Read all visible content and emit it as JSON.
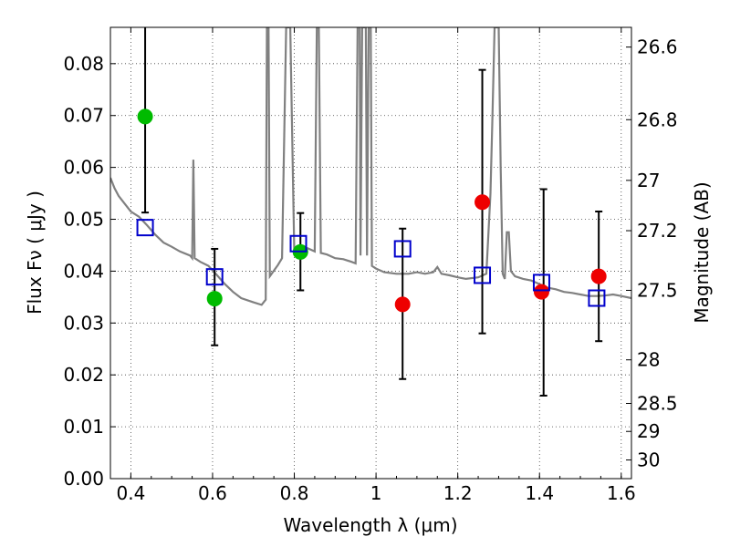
{
  "chart_data": {
    "type": "scatter",
    "xlabel": "Wavelength  λ (μm)",
    "ylabel": "Flux  Fν  ( μJy )",
    "ylabel_right": "Magnitude (AB)",
    "xlim": [
      0.35,
      1.625
    ],
    "ylim": [
      0.0,
      0.087
    ],
    "grid": true,
    "x_ticks": [
      0.4,
      0.6,
      0.8,
      1.0,
      1.2,
      1.4,
      1.6
    ],
    "x_tick_labels": [
      "0.4",
      "0.6",
      "0.8",
      "1",
      "1.2",
      "1.4",
      "1.6"
    ],
    "y_ticks": [
      0.0,
      0.01,
      0.02,
      0.03,
      0.04,
      0.05,
      0.06,
      0.07,
      0.08
    ],
    "y_tick_labels": [
      "0.00",
      "0.01",
      "0.02",
      "0.03",
      "0.04",
      "0.05",
      "0.06",
      "0.07",
      "0.08"
    ],
    "mag_ticks": [
      {
        "label": "26.6",
        "flux": 0.0832
      },
      {
        "label": "26.8",
        "flux": 0.0692
      },
      {
        "label": "27",
        "flux": 0.0575
      },
      {
        "label": "27.2",
        "flux": 0.0478
      },
      {
        "label": "27.5",
        "flux": 0.0363
      },
      {
        "label": "28",
        "flux": 0.0229
      },
      {
        "label": "28.5",
        "flux": 0.0145
      },
      {
        "label": "29",
        "flux": 0.0091
      },
      {
        "label": "30",
        "flux": 0.0036
      }
    ],
    "series": [
      {
        "kind": "line",
        "color": "#808080",
        "points": [
          [
            0.35,
            0.058
          ],
          [
            0.36,
            0.056
          ],
          [
            0.37,
            0.0545
          ],
          [
            0.38,
            0.0535
          ],
          [
            0.39,
            0.0525
          ],
          [
            0.4,
            0.0515
          ],
          [
            0.42,
            0.0505
          ],
          [
            0.44,
            0.0488
          ],
          [
            0.46,
            0.047
          ],
          [
            0.48,
            0.0455
          ],
          [
            0.5,
            0.0447
          ],
          [
            0.52,
            0.0438
          ],
          [
            0.545,
            0.043
          ],
          [
            0.55,
            0.0425
          ],
          [
            0.553,
            0.0615
          ],
          [
            0.556,
            0.0425
          ],
          [
            0.57,
            0.0418
          ],
          [
            0.59,
            0.041
          ],
          [
            0.61,
            0.0393
          ],
          [
            0.63,
            0.0375
          ],
          [
            0.65,
            0.036
          ],
          [
            0.67,
            0.0348
          ],
          [
            0.7,
            0.034
          ],
          [
            0.72,
            0.0335
          ],
          [
            0.73,
            0.0345
          ],
          [
            0.733,
            0.087
          ],
          [
            0.737,
            0.087
          ],
          [
            0.74,
            0.039
          ],
          [
            0.76,
            0.0412
          ],
          [
            0.77,
            0.0425
          ],
          [
            0.78,
            0.087
          ],
          [
            0.79,
            0.087
          ],
          [
            0.8,
            0.0435
          ],
          [
            0.81,
            0.044
          ],
          [
            0.83,
            0.0445
          ],
          [
            0.85,
            0.0438
          ],
          [
            0.855,
            0.087
          ],
          [
            0.86,
            0.087
          ],
          [
            0.865,
            0.0435
          ],
          [
            0.88,
            0.0432
          ],
          [
            0.9,
            0.0425
          ],
          [
            0.92,
            0.0423
          ],
          [
            0.94,
            0.0418
          ],
          [
            0.95,
            0.0415
          ],
          [
            0.955,
            0.087
          ],
          [
            0.96,
            0.087
          ],
          [
            0.962,
            0.043
          ],
          [
            0.966,
            0.087
          ],
          [
            0.975,
            0.087
          ],
          [
            0.978,
            0.043
          ],
          [
            0.982,
            0.087
          ],
          [
            0.987,
            0.087
          ],
          [
            0.99,
            0.041
          ],
          [
            1.0,
            0.0405
          ],
          [
            1.02,
            0.0398
          ],
          [
            1.05,
            0.0395
          ],
          [
            1.08,
            0.0395
          ],
          [
            1.1,
            0.0398
          ],
          [
            1.12,
            0.0395
          ],
          [
            1.14,
            0.0398
          ],
          [
            1.15,
            0.0408
          ],
          [
            1.16,
            0.0395
          ],
          [
            1.18,
            0.0392
          ],
          [
            1.2,
            0.0388
          ],
          [
            1.22,
            0.0385
          ],
          [
            1.25,
            0.0388
          ],
          [
            1.27,
            0.0395
          ],
          [
            1.28,
            0.055
          ],
          [
            1.285,
            0.07
          ],
          [
            1.29,
            0.087
          ],
          [
            1.3,
            0.087
          ],
          [
            1.305,
            0.06
          ],
          [
            1.31,
            0.0395
          ],
          [
            1.315,
            0.0385
          ],
          [
            1.32,
            0.0475
          ],
          [
            1.325,
            0.0475
          ],
          [
            1.33,
            0.04
          ],
          [
            1.34,
            0.039
          ],
          [
            1.36,
            0.0385
          ],
          [
            1.38,
            0.0382
          ],
          [
            1.4,
            0.0375
          ],
          [
            1.42,
            0.0368
          ],
          [
            1.44,
            0.0365
          ],
          [
            1.46,
            0.036
          ],
          [
            1.48,
            0.0358
          ],
          [
            1.5,
            0.0355
          ],
          [
            1.52,
            0.0352
          ],
          [
            1.54,
            0.0352
          ],
          [
            1.56,
            0.0353
          ],
          [
            1.58,
            0.0355
          ],
          [
            1.6,
            0.0352
          ],
          [
            1.625,
            0.0348
          ]
        ]
      },
      {
        "kind": "errorbar",
        "color": "#000000",
        "points": [
          {
            "x": 0.435,
            "ylo": 0.0513,
            "yhi": 0.087
          },
          {
            "x": 0.605,
            "ylo": 0.0257,
            "yhi": 0.0443
          },
          {
            "x": 0.815,
            "ylo": 0.0363,
            "yhi": 0.0512
          },
          {
            "x": 1.065,
            "ylo": 0.0192,
            "yhi": 0.0482
          },
          {
            "x": 1.26,
            "ylo": 0.028,
            "yhi": 0.0788
          },
          {
            "x": 1.41,
            "ylo": 0.016,
            "yhi": 0.0558
          },
          {
            "x": 1.545,
            "ylo": 0.0265,
            "yhi": 0.0515
          }
        ]
      },
      {
        "kind": "circle",
        "color": "#00bb00",
        "points": [
          [
            0.435,
            0.0698
          ],
          [
            0.605,
            0.0347
          ],
          [
            0.815,
            0.0437
          ]
        ]
      },
      {
        "kind": "circle",
        "color": "#ee0000",
        "points": [
          [
            1.065,
            0.0336
          ],
          [
            1.26,
            0.0533
          ],
          [
            1.405,
            0.036
          ],
          [
            1.545,
            0.039
          ]
        ]
      },
      {
        "kind": "square",
        "color": "#0000cc",
        "points": [
          [
            0.435,
            0.0484
          ],
          [
            0.605,
            0.0389
          ],
          [
            0.81,
            0.0453
          ],
          [
            1.065,
            0.0443
          ],
          [
            1.26,
            0.0392
          ],
          [
            1.405,
            0.0378
          ],
          [
            1.54,
            0.0348
          ]
        ]
      }
    ]
  }
}
